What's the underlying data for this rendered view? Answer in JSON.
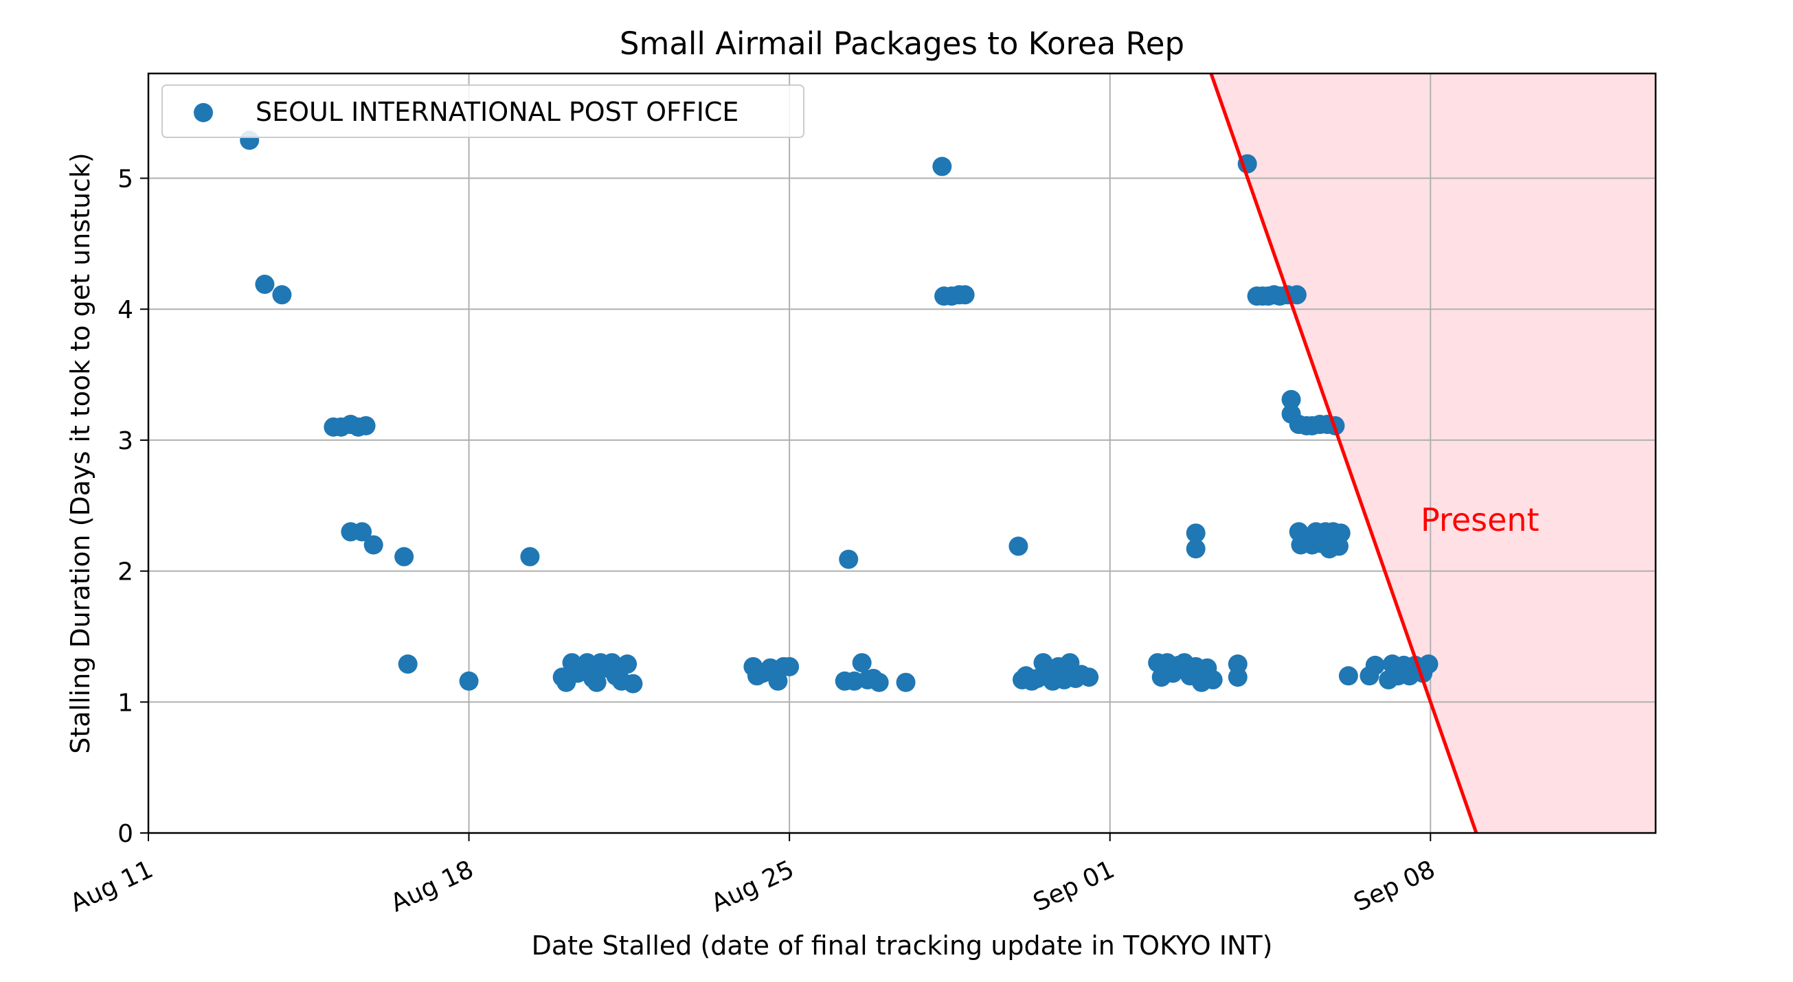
{
  "chart_data": {
    "type": "scatter",
    "title": "Small Airmail Packages to Korea Rep",
    "xlabel": "Date Stalled (date of final tracking update in TOKYO INT)",
    "ylabel": "Stalling Duration (Days it took to get unstuck)",
    "x_axis": "date",
    "xlim": [
      "2024-08-11",
      "2024-09-12 22:00"
    ],
    "ylim": [
      0,
      5.8
    ],
    "x_ticks": [
      {
        "date": "2024-08-11",
        "label": "Aug 11"
      },
      {
        "date": "2024-08-18",
        "label": "Aug 18"
      },
      {
        "date": "2024-08-25",
        "label": "Aug 25"
      },
      {
        "date": "2024-09-01",
        "label": "Sep 01"
      },
      {
        "date": "2024-09-08",
        "label": "Sep 08"
      }
    ],
    "y_ticks": [
      0,
      1,
      2,
      3,
      4,
      5
    ],
    "grid": true,
    "legend_position": "top-left",
    "series": [
      {
        "name": "SEOUL INTERNATIONAL POST OFFICE",
        "color": "#1f77b4",
        "points": [
          [
            "2024-08-13 05:00",
            5.29
          ],
          [
            "2024-08-13 13:00",
            4.19
          ],
          [
            "2024-08-13 22:00",
            4.11
          ],
          [
            "2024-08-15 01:00",
            3.1
          ],
          [
            "2024-08-15 05:00",
            3.1
          ],
          [
            "2024-08-15 10:00",
            3.12
          ],
          [
            "2024-08-15 14:00",
            3.1
          ],
          [
            "2024-08-15 18:00",
            3.11
          ],
          [
            "2024-08-15 10:00",
            2.3
          ],
          [
            "2024-08-15 16:00",
            2.3
          ],
          [
            "2024-08-15 22:00",
            2.2
          ],
          [
            "2024-08-16 14:00",
            2.11
          ],
          [
            "2024-08-16 16:00",
            1.29
          ],
          [
            "2024-08-18 00:00",
            1.16
          ],
          [
            "2024-08-19 08:00",
            2.11
          ],
          [
            "2024-08-20 01:00",
            1.19
          ],
          [
            "2024-08-20 03:00",
            1.15
          ],
          [
            "2024-08-20 06:00",
            1.3
          ],
          [
            "2024-08-20 09:00",
            1.22
          ],
          [
            "2024-08-20 12:00",
            1.27
          ],
          [
            "2024-08-20 14:00",
            1.3
          ],
          [
            "2024-08-20 17:00",
            1.18
          ],
          [
            "2024-08-20 19:00",
            1.15
          ],
          [
            "2024-08-20 21:00",
            1.3
          ],
          [
            "2024-08-21 00:00",
            1.26
          ],
          [
            "2024-08-21 03:00",
            1.3
          ],
          [
            "2024-08-21 05:00",
            1.2
          ],
          [
            "2024-08-21 08:00",
            1.16
          ],
          [
            "2024-08-21 11:00",
            1.29
          ],
          [
            "2024-08-21 14:00",
            1.14
          ],
          [
            "2024-08-24 05:00",
            1.27
          ],
          [
            "2024-08-24 07:00",
            1.2
          ],
          [
            "2024-08-24 10:00",
            1.22
          ],
          [
            "2024-08-24 14:00",
            1.26
          ],
          [
            "2024-08-24 18:00",
            1.16
          ],
          [
            "2024-08-24 21:00",
            1.27
          ],
          [
            "2024-08-25 00:00",
            1.27
          ],
          [
            "2024-08-26 07:00",
            2.09
          ],
          [
            "2024-08-26 05:00",
            1.16
          ],
          [
            "2024-08-26 10:00",
            1.16
          ],
          [
            "2024-08-26 14:00",
            1.3
          ],
          [
            "2024-08-26 17:00",
            1.17
          ],
          [
            "2024-08-26 20:00",
            1.18
          ],
          [
            "2024-08-26 23:00",
            1.15
          ],
          [
            "2024-08-27 13:00",
            1.15
          ],
          [
            "2024-08-28 08:00",
            5.09
          ],
          [
            "2024-08-28 09:00",
            4.1
          ],
          [
            "2024-08-28 13:00",
            4.1
          ],
          [
            "2024-08-28 17:00",
            4.11
          ],
          [
            "2024-08-28 20:00",
            4.11
          ],
          [
            "2024-08-30 00:00",
            2.19
          ],
          [
            "2024-08-30 02:00",
            1.17
          ],
          [
            "2024-08-30 04:00",
            1.2
          ],
          [
            "2024-08-30 07:00",
            1.16
          ],
          [
            "2024-08-30 10:00",
            1.18
          ],
          [
            "2024-08-30 13:00",
            1.3
          ],
          [
            "2024-08-30 15:00",
            1.22
          ],
          [
            "2024-08-30 18:00",
            1.16
          ],
          [
            "2024-08-30 21:00",
            1.27
          ],
          [
            "2024-08-31 00:00",
            1.17
          ],
          [
            "2024-08-31 03:00",
            1.3
          ],
          [
            "2024-08-31 06:00",
            1.18
          ],
          [
            "2024-08-31 09:00",
            1.21
          ],
          [
            "2024-08-31 13:00",
            1.19
          ],
          [
            "2024-09-02 01:00",
            1.3
          ],
          [
            "2024-09-02 03:00",
            1.19
          ],
          [
            "2024-09-02 06:00",
            1.3
          ],
          [
            "2024-09-02 09:00",
            1.22
          ],
          [
            "2024-09-02 12:00",
            1.28
          ],
          [
            "2024-09-02 15:00",
            1.3
          ],
          [
            "2024-09-02 18:00",
            1.2
          ],
          [
            "2024-09-02 21:00",
            1.27
          ],
          [
            "2024-09-03 00:00",
            1.15
          ],
          [
            "2024-09-03 03:00",
            1.26
          ],
          [
            "2024-09-03 06:00",
            1.17
          ],
          [
            "2024-09-03 19:00",
            1.29
          ],
          [
            "2024-09-03 19:00",
            1.19
          ],
          [
            "2024-09-02 21:00",
            2.29
          ],
          [
            "2024-09-02 21:00",
            2.17
          ],
          [
            "2024-09-04 00:00",
            5.11
          ],
          [
            "2024-09-04 05:00",
            4.1
          ],
          [
            "2024-09-04 08:00",
            4.1
          ],
          [
            "2024-09-04 11:00",
            4.1
          ],
          [
            "2024-09-04 14:00",
            4.11
          ],
          [
            "2024-09-04 17:00",
            4.1
          ],
          [
            "2024-09-04 21:00",
            4.11
          ],
          [
            "2024-09-05 02:00",
            4.11
          ],
          [
            "2024-09-04 23:00",
            3.31
          ],
          [
            "2024-09-04 23:00",
            3.2
          ],
          [
            "2024-09-05 03:00",
            3.12
          ],
          [
            "2024-09-05 07:00",
            3.11
          ],
          [
            "2024-09-05 10:00",
            3.11
          ],
          [
            "2024-09-05 14:00",
            3.12
          ],
          [
            "2024-09-05 18:00",
            3.12
          ],
          [
            "2024-09-05 22:00",
            3.11
          ],
          [
            "2024-09-05 03:00",
            2.3
          ],
          [
            "2024-09-05 04:00",
            2.2
          ],
          [
            "2024-09-05 07:00",
            2.26
          ],
          [
            "2024-09-05 10:00",
            2.2
          ],
          [
            "2024-09-05 12:00",
            2.3
          ],
          [
            "2024-09-05 15:00",
            2.21
          ],
          [
            "2024-09-05 17:00",
            2.3
          ],
          [
            "2024-09-05 19:00",
            2.17
          ],
          [
            "2024-09-05 21:00",
            2.3
          ],
          [
            "2024-09-06 00:00",
            2.19
          ],
          [
            "2024-09-06 01:00",
            2.29
          ],
          [
            "2024-09-06 05:00",
            1.2
          ],
          [
            "2024-09-06 16:00",
            1.2
          ],
          [
            "2024-09-06 19:00",
            1.28
          ],
          [
            "2024-09-07 02:00",
            1.17
          ],
          [
            "2024-09-07 04:00",
            1.29
          ],
          [
            "2024-09-07 07:00",
            1.2
          ],
          [
            "2024-09-07 10:00",
            1.28
          ],
          [
            "2024-09-07 13:00",
            1.2
          ],
          [
            "2024-09-07 16:00",
            1.28
          ],
          [
            "2024-09-07 20:00",
            1.22
          ],
          [
            "2024-09-07 23:00",
            1.29
          ]
        ]
      }
    ],
    "annotations": [
      {
        "text": "Present",
        "color": "#ff0000",
        "line_from": [
          "2024-09-03 05:00",
          5.8
        ],
        "line_to": [
          "2024-09-09 00:00",
          0
        ],
        "shade_color": "#ffe0e4"
      }
    ]
  }
}
